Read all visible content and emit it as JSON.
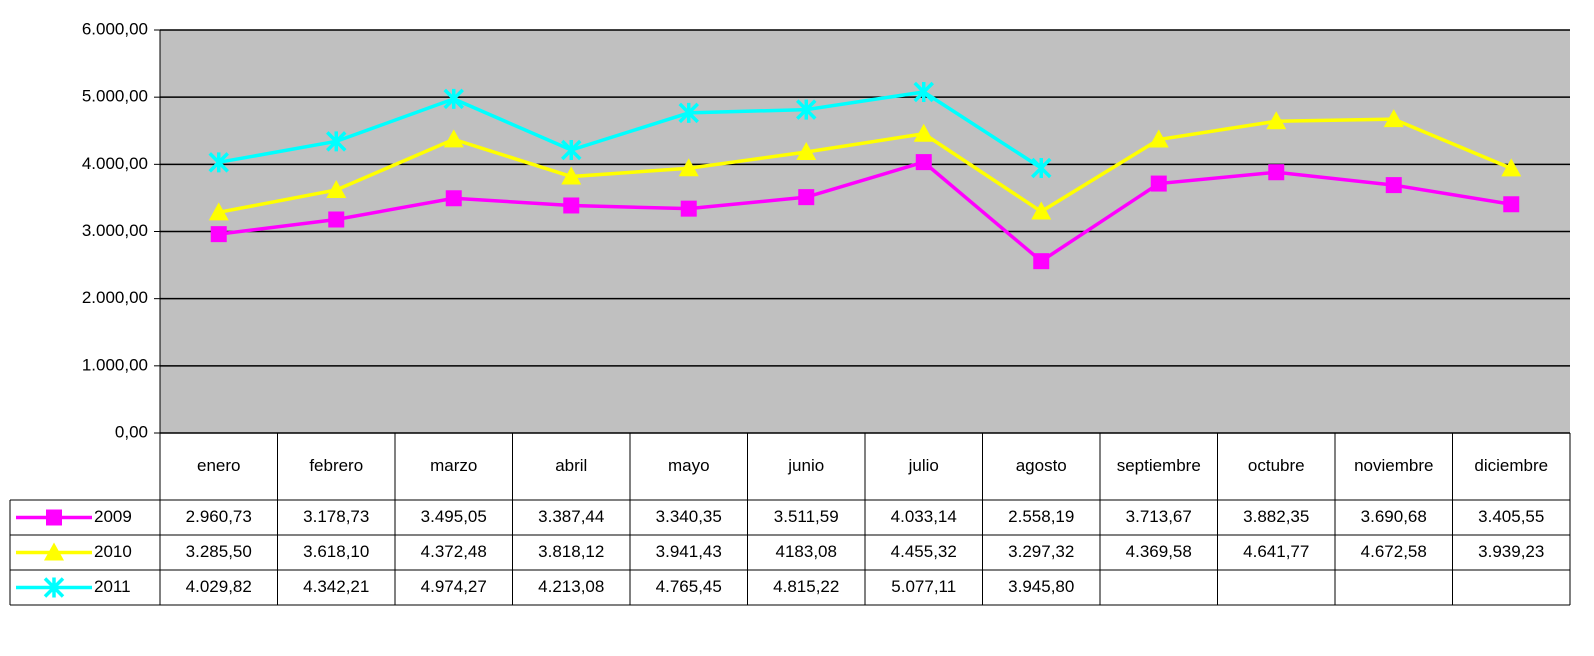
{
  "chart_data": {
    "type": "line",
    "categories": [
      "enero",
      "febrero",
      "marzo",
      "abril",
      "mayo",
      "junio",
      "julio",
      "agosto",
      "septiembre",
      "octubre",
      "noviembre",
      "diciembre"
    ],
    "series": [
      {
        "name": "2009",
        "color": "#ff00ff",
        "marker": "square",
        "values": [
          2960.73,
          3178.73,
          3495.05,
          3387.44,
          3340.35,
          3511.59,
          4033.14,
          2558.19,
          3713.67,
          3882.35,
          3690.68,
          3405.55
        ],
        "value_labels": [
          "2.960,73",
          "3.178,73",
          "3.495,05",
          "3.387,44",
          "3.340,35",
          "3.511,59",
          "4.033,14",
          "2.558,19",
          "3.713,67",
          "3.882,35",
          "3.690,68",
          "3.405,55"
        ]
      },
      {
        "name": "2010",
        "color": "#ffff00",
        "marker": "triangle",
        "values": [
          3285.5,
          3618.1,
          4372.48,
          3818.12,
          3941.43,
          4183.08,
          4455.32,
          3297.32,
          4369.58,
          4641.77,
          4672.58,
          3939.23
        ],
        "value_labels": [
          "3.285,50",
          "3.618,10",
          "4.372,48",
          "3.818,12",
          "3.941,43",
          "4183,08",
          "4.455,32",
          "3.297,32",
          "4.369,58",
          "4.641,77",
          "4.672,58",
          "3.939,23"
        ]
      },
      {
        "name": "2011",
        "color": "#00ffff",
        "marker": "x",
        "values": [
          4029.82,
          4342.21,
          4974.27,
          4213.08,
          4765.45,
          4815.22,
          5077.11,
          3945.8,
          null,
          null,
          null,
          null
        ],
        "value_labels": [
          "4.029,82",
          "4.342,21",
          "4.974,27",
          "4.213,08",
          "4.765,45",
          "4.815,22",
          "5.077,11",
          "3.945,80",
          null,
          null,
          null,
          null
        ]
      }
    ],
    "ylim": [
      0,
      6000
    ],
    "yticks": [
      {
        "value": 0,
        "label": "0,00"
      },
      {
        "value": 1000,
        "label": "1.000,00"
      },
      {
        "value": 2000,
        "label": "2.000,00"
      },
      {
        "value": 3000,
        "label": "3.000,00"
      },
      {
        "value": 4000,
        "label": "4.000,00"
      },
      {
        "value": 5000,
        "label": "5.000,00"
      },
      {
        "value": 6000,
        "label": "6.000,00"
      }
    ],
    "grid": true,
    "plot_background": "#c0c0c0"
  }
}
